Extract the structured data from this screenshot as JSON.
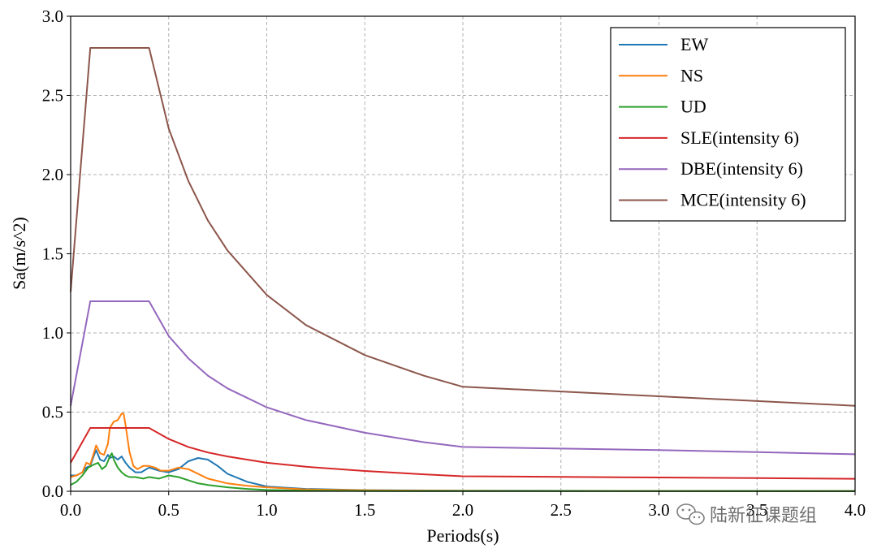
{
  "chart_data": {
    "type": "line",
    "xlabel": "Periods(s)",
    "ylabel": "Sa(m/s^2)",
    "xlim": [
      0,
      4
    ],
    "ylim": [
      0,
      3
    ],
    "xticks": [
      "0.0",
      "0.5",
      "1.0",
      "1.5",
      "2.0",
      "2.5",
      "3.0",
      "3.5",
      "4.0"
    ],
    "yticks": [
      "0.0",
      "0.5",
      "1.0",
      "1.5",
      "2.0",
      "2.5",
      "3.0"
    ],
    "grid": true,
    "legend_position": "top-right",
    "series": [
      {
        "name": "EW",
        "color": "#1f77b4",
        "x": [
          0,
          0.03,
          0.06,
          0.08,
          0.1,
          0.12,
          0.13,
          0.15,
          0.17,
          0.19,
          0.2,
          0.22,
          0.24,
          0.26,
          0.28,
          0.3,
          0.33,
          0.36,
          0.4,
          0.45,
          0.5,
          0.55,
          0.6,
          0.65,
          0.7,
          0.75,
          0.8,
          0.9,
          1.0,
          1.2,
          1.5,
          2.0,
          2.5,
          3.0,
          3.5,
          4.0
        ],
        "y": [
          0.1,
          0.1,
          0.12,
          0.15,
          0.16,
          0.23,
          0.26,
          0.2,
          0.19,
          0.23,
          0.21,
          0.22,
          0.2,
          0.22,
          0.18,
          0.15,
          0.12,
          0.12,
          0.15,
          0.13,
          0.12,
          0.14,
          0.19,
          0.21,
          0.2,
          0.16,
          0.11,
          0.06,
          0.03,
          0.015,
          0.007,
          0.004,
          0.003,
          0.002,
          0.002,
          0.001
        ]
      },
      {
        "name": "NS",
        "color": "#ff7f0e",
        "x": [
          0,
          0.03,
          0.06,
          0.08,
          0.1,
          0.12,
          0.13,
          0.15,
          0.17,
          0.19,
          0.2,
          0.22,
          0.24,
          0.26,
          0.27,
          0.28,
          0.3,
          0.32,
          0.34,
          0.37,
          0.4,
          0.43,
          0.46,
          0.5,
          0.55,
          0.6,
          0.7,
          0.8,
          0.9,
          1.0,
          1.2,
          1.5,
          2.0,
          2.5,
          3.0,
          3.5,
          4.0
        ],
        "y": [
          0.09,
          0.1,
          0.12,
          0.18,
          0.17,
          0.25,
          0.29,
          0.24,
          0.23,
          0.3,
          0.4,
          0.44,
          0.45,
          0.49,
          0.49,
          0.42,
          0.25,
          0.16,
          0.14,
          0.16,
          0.16,
          0.15,
          0.13,
          0.13,
          0.15,
          0.14,
          0.08,
          0.05,
          0.035,
          0.025,
          0.012,
          0.006,
          0.003,
          0.002,
          0.002,
          0.001,
          0.001
        ]
      },
      {
        "name": "UD",
        "color": "#2ca02c",
        "x": [
          0,
          0.03,
          0.06,
          0.09,
          0.12,
          0.14,
          0.16,
          0.18,
          0.2,
          0.21,
          0.22,
          0.24,
          0.26,
          0.28,
          0.3,
          0.33,
          0.37,
          0.4,
          0.45,
          0.5,
          0.55,
          0.6,
          0.65,
          0.7,
          0.8,
          0.9,
          1.0,
          1.2,
          1.5,
          2.0,
          2.5,
          3.0,
          3.5,
          4.0
        ],
        "y": [
          0.04,
          0.06,
          0.1,
          0.15,
          0.17,
          0.18,
          0.14,
          0.16,
          0.22,
          0.24,
          0.2,
          0.15,
          0.12,
          0.1,
          0.09,
          0.09,
          0.08,
          0.09,
          0.08,
          0.1,
          0.09,
          0.07,
          0.05,
          0.04,
          0.025,
          0.015,
          0.008,
          0.004,
          0.002,
          0.001,
          0.001,
          0.001,
          0.001,
          0.001
        ]
      },
      {
        "name": "SLE(intensity 6)",
        "color": "#d62728",
        "x": [
          0,
          0.1,
          0.4,
          0.5,
          0.6,
          0.7,
          0.8,
          1.0,
          1.2,
          1.5,
          1.8,
          2.0,
          2.5,
          3.0,
          3.5,
          4.0
        ],
        "y": [
          0.18,
          0.4,
          0.4,
          0.33,
          0.28,
          0.245,
          0.22,
          0.18,
          0.155,
          0.128,
          0.107,
          0.095,
          0.091,
          0.087,
          0.083,
          0.079
        ]
      },
      {
        "name": "DBE(intensity 6)",
        "color": "#9467bd",
        "x": [
          0,
          0.1,
          0.4,
          0.5,
          0.6,
          0.7,
          0.8,
          1.0,
          1.2,
          1.5,
          1.8,
          2.0,
          2.5,
          3.0,
          3.5,
          4.0
        ],
        "y": [
          0.54,
          1.2,
          1.2,
          0.98,
          0.84,
          0.73,
          0.65,
          0.53,
          0.45,
          0.37,
          0.31,
          0.28,
          0.27,
          0.26,
          0.247,
          0.234
        ]
      },
      {
        "name": "MCE(intensity 6)",
        "color": "#8c564b",
        "x": [
          0,
          0.1,
          0.4,
          0.5,
          0.6,
          0.7,
          0.8,
          1.0,
          1.2,
          1.5,
          1.8,
          2.0,
          2.5,
          3.0,
          3.5,
          4.0
        ],
        "y": [
          1.26,
          2.8,
          2.8,
          2.29,
          1.96,
          1.71,
          1.52,
          1.24,
          1.05,
          0.86,
          0.73,
          0.66,
          0.63,
          0.6,
          0.57,
          0.54
        ]
      }
    ]
  },
  "watermark": {
    "text": "陆新征课题组",
    "icon": "wechat-icon"
  }
}
